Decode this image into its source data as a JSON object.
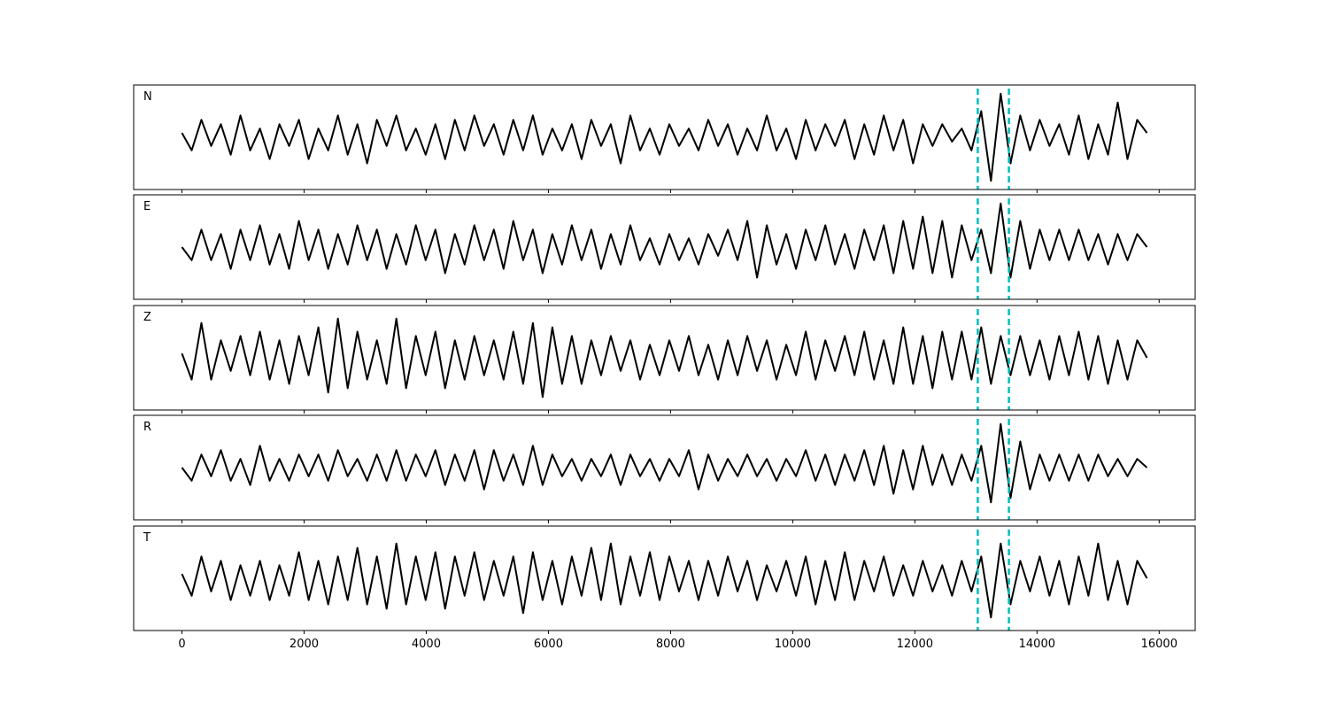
{
  "chart_data": {
    "type": "line",
    "xlim": [
      -790,
      16590
    ],
    "ylim": [
      -1.2,
      1.2
    ],
    "x_range": [
      0,
      15800
    ],
    "xticks": [
      0,
      2000,
      4000,
      6000,
      8000,
      10000,
      12000,
      14000,
      16000
    ],
    "xtick_labels": [
      "0",
      "2000",
      "4000",
      "6000",
      "8000",
      "10000",
      "12000",
      "14000",
      "16000"
    ],
    "grid": false,
    "line_color": "#000000",
    "markers": {
      "x": [
        13030,
        13540
      ],
      "color": "#00BFBF",
      "style": "dashed"
    },
    "panels": [
      {
        "label": "N",
        "values": [
          0.1,
          -0.3,
          0.4,
          -0.2,
          0.3,
          -0.4,
          0.5,
          -0.3,
          0.2,
          -0.5,
          0.3,
          -0.2,
          0.4,
          -0.5,
          0.2,
          -0.3,
          0.5,
          -0.4,
          0.3,
          -0.6,
          0.4,
          -0.2,
          0.5,
          -0.3,
          0.2,
          -0.4,
          0.3,
          -0.5,
          0.4,
          -0.3,
          0.5,
          -0.2,
          0.3,
          -0.4,
          0.4,
          -0.3,
          0.5,
          -0.4,
          0.2,
          -0.3,
          0.3,
          -0.5,
          0.4,
          -0.2,
          0.3,
          -0.6,
          0.5,
          -0.3,
          0.2,
          -0.4,
          0.3,
          -0.2,
          0.2,
          -0.3,
          0.4,
          -0.2,
          0.3,
          -0.4,
          0.2,
          -0.3,
          0.5,
          -0.3,
          0.2,
          -0.5,
          0.4,
          -0.3,
          0.3,
          -0.2,
          0.4,
          -0.5,
          0.3,
          -0.4,
          0.5,
          -0.3,
          0.4,
          -0.6,
          0.3,
          -0.2,
          0.3,
          -0.1,
          0.2,
          -0.3,
          0.6,
          -1.0,
          1.0,
          -0.6,
          0.5,
          -0.3,
          0.4,
          -0.2,
          0.3,
          -0.4,
          0.5,
          -0.5,
          0.3,
          -0.4,
          0.8,
          -0.5,
          0.4,
          0.1
        ]
      },
      {
        "label": "E",
        "values": [
          0.0,
          -0.3,
          0.4,
          -0.3,
          0.3,
          -0.5,
          0.4,
          -0.3,
          0.5,
          -0.4,
          0.3,
          -0.5,
          0.6,
          -0.3,
          0.4,
          -0.5,
          0.3,
          -0.4,
          0.5,
          -0.3,
          0.4,
          -0.5,
          0.3,
          -0.4,
          0.5,
          -0.3,
          0.4,
          -0.6,
          0.3,
          -0.4,
          0.5,
          -0.3,
          0.4,
          -0.5,
          0.6,
          -0.3,
          0.4,
          -0.6,
          0.3,
          -0.4,
          0.5,
          -0.3,
          0.4,
          -0.5,
          0.3,
          -0.4,
          0.5,
          -0.3,
          0.2,
          -0.4,
          0.3,
          -0.3,
          0.2,
          -0.4,
          0.3,
          -0.2,
          0.4,
          -0.3,
          0.6,
          -0.7,
          0.5,
          -0.4,
          0.3,
          -0.5,
          0.4,
          -0.3,
          0.5,
          -0.4,
          0.3,
          -0.5,
          0.4,
          -0.3,
          0.5,
          -0.6,
          0.6,
          -0.5,
          0.7,
          -0.6,
          0.6,
          -0.7,
          0.5,
          -0.3,
          0.4,
          -0.6,
          1.0,
          -0.7,
          0.6,
          -0.5,
          0.4,
          -0.3,
          0.4,
          -0.3,
          0.4,
          -0.3,
          0.3,
          -0.4,
          0.3,
          -0.3,
          0.3,
          0.0
        ]
      },
      {
        "label": "Z",
        "values": [
          0.1,
          -0.5,
          0.8,
          -0.5,
          0.4,
          -0.3,
          0.5,
          -0.4,
          0.6,
          -0.5,
          0.4,
          -0.6,
          0.5,
          -0.4,
          0.7,
          -0.8,
          0.9,
          -0.7,
          0.6,
          -0.5,
          0.4,
          -0.6,
          0.9,
          -0.7,
          0.5,
          -0.4,
          0.6,
          -0.7,
          0.4,
          -0.5,
          0.5,
          -0.4,
          0.4,
          -0.5,
          0.6,
          -0.6,
          0.8,
          -0.9,
          0.7,
          -0.6,
          0.5,
          -0.6,
          0.4,
          -0.4,
          0.5,
          -0.3,
          0.4,
          -0.5,
          0.3,
          -0.4,
          0.4,
          -0.3,
          0.5,
          -0.4,
          0.3,
          -0.5,
          0.4,
          -0.4,
          0.5,
          -0.3,
          0.4,
          -0.5,
          0.3,
          -0.4,
          0.6,
          -0.5,
          0.4,
          -0.3,
          0.5,
          -0.4,
          0.6,
          -0.5,
          0.4,
          -0.6,
          0.7,
          -0.6,
          0.5,
          -0.7,
          0.6,
          -0.5,
          0.6,
          -0.5,
          0.7,
          -0.6,
          0.5,
          -0.4,
          0.5,
          -0.4,
          0.4,
          -0.5,
          0.5,
          -0.4,
          0.6,
          -0.5,
          0.5,
          -0.6,
          0.4,
          -0.5,
          0.4,
          0.0
        ]
      },
      {
        "label": "R",
        "values": [
          0.0,
          -0.3,
          0.3,
          -0.2,
          0.4,
          -0.3,
          0.2,
          -0.4,
          0.5,
          -0.3,
          0.2,
          -0.3,
          0.3,
          -0.2,
          0.3,
          -0.3,
          0.4,
          -0.2,
          0.2,
          -0.3,
          0.3,
          -0.3,
          0.4,
          -0.3,
          0.3,
          -0.2,
          0.4,
          -0.4,
          0.3,
          -0.3,
          0.4,
          -0.5,
          0.4,
          -0.3,
          0.3,
          -0.4,
          0.5,
          -0.4,
          0.3,
          -0.2,
          0.2,
          -0.3,
          0.2,
          -0.2,
          0.3,
          -0.4,
          0.3,
          -0.2,
          0.2,
          -0.3,
          0.2,
          -0.2,
          0.4,
          -0.5,
          0.3,
          -0.3,
          0.2,
          -0.2,
          0.3,
          -0.2,
          0.2,
          -0.3,
          0.2,
          -0.2,
          0.4,
          -0.3,
          0.3,
          -0.4,
          0.3,
          -0.3,
          0.4,
          -0.4,
          0.5,
          -0.6,
          0.4,
          -0.5,
          0.5,
          -0.4,
          0.3,
          -0.4,
          0.3,
          -0.3,
          0.5,
          -0.8,
          1.0,
          -0.7,
          0.6,
          -0.5,
          0.3,
          -0.3,
          0.3,
          -0.3,
          0.3,
          -0.3,
          0.3,
          -0.2,
          0.2,
          -0.2,
          0.2,
          0.0
        ]
      },
      {
        "label": "T",
        "values": [
          0.1,
          -0.4,
          0.5,
          -0.3,
          0.4,
          -0.5,
          0.3,
          -0.4,
          0.4,
          -0.5,
          0.3,
          -0.4,
          0.6,
          -0.5,
          0.4,
          -0.6,
          0.5,
          -0.5,
          0.7,
          -0.6,
          0.5,
          -0.7,
          0.8,
          -0.6,
          0.5,
          -0.5,
          0.6,
          -0.7,
          0.5,
          -0.4,
          0.6,
          -0.5,
          0.4,
          -0.4,
          0.5,
          -0.8,
          0.6,
          -0.5,
          0.4,
          -0.6,
          0.5,
          -0.4,
          0.7,
          -0.5,
          0.8,
          -0.6,
          0.5,
          -0.4,
          0.6,
          -0.5,
          0.5,
          -0.3,
          0.4,
          -0.5,
          0.4,
          -0.4,
          0.5,
          -0.3,
          0.4,
          -0.5,
          0.3,
          -0.3,
          0.4,
          -0.4,
          0.5,
          -0.6,
          0.4,
          -0.5,
          0.6,
          -0.5,
          0.4,
          -0.3,
          0.5,
          -0.4,
          0.3,
          -0.4,
          0.4,
          -0.3,
          0.3,
          -0.4,
          0.4,
          -0.3,
          0.5,
          -0.9,
          0.8,
          -0.6,
          0.4,
          -0.3,
          0.5,
          -0.4,
          0.4,
          -0.6,
          0.5,
          -0.4,
          0.8,
          -0.5,
          0.4,
          -0.6,
          0.4,
          0.0
        ]
      }
    ]
  }
}
